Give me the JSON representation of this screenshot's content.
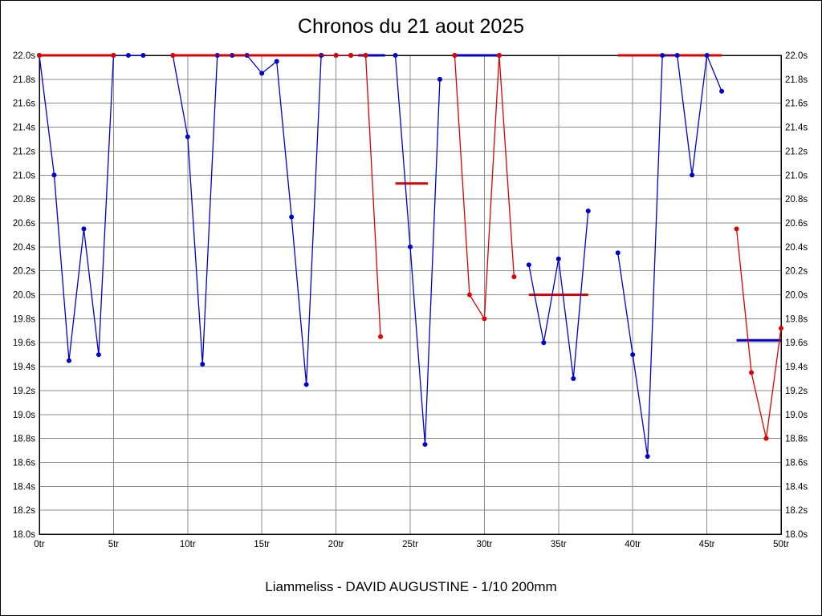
{
  "title": "Chronos du 21 aout 2025",
  "footer": "Liammeliss - DAVID AUGUSTINE - 1/10 200mm",
  "chart_data": {
    "type": "line",
    "title": "Chronos du 21 aout 2025",
    "caption": "Liammeliss - DAVID AUGUSTINE - 1/10 200mm",
    "grid": true,
    "legend": "none",
    "x_axis": {
      "min": 0,
      "max": 50,
      "step": 5,
      "suffix": "tr",
      "ticks": [
        "0tr",
        "5tr",
        "10tr",
        "15tr",
        "20tr",
        "25tr",
        "30tr",
        "35tr",
        "40tr",
        "45tr",
        "50tr"
      ]
    },
    "y_axis": {
      "min": 18.0,
      "max": 22.0,
      "step": 0.2,
      "suffix": "s",
      "ticks": [
        "18.0s",
        "18.2s",
        "18.4s",
        "18.6s",
        "18.8s",
        "19.0s",
        "19.2s",
        "19.4s",
        "19.6s",
        "19.8s",
        "20.0s",
        "20.2s",
        "20.4s",
        "20.6s",
        "20.8s",
        "21.0s",
        "21.2s",
        "21.4s",
        "21.6s",
        "21.8s",
        "22.0s"
      ],
      "labels_on_both_sides": true
    },
    "colors": {
      "blue": "#0000cc",
      "red": "#dd0000",
      "grid": "#8c8c8c",
      "frame": "#000000"
    },
    "series": [
      {
        "name": "series-blue",
        "color": "#0000cc",
        "polylines": [
          [
            [
              0,
              22.0
            ],
            [
              1,
              21.0
            ],
            [
              2,
              19.45
            ],
            [
              3,
              20.55
            ],
            [
              4,
              19.5
            ],
            [
              5,
              22.0
            ],
            [
              6,
              22.0
            ],
            [
              7,
              22.0
            ]
          ],
          [
            [
              9,
              22.0
            ],
            [
              10,
              21.32
            ],
            [
              11,
              19.42
            ],
            [
              12,
              22.0
            ],
            [
              13,
              22.0
            ],
            [
              14,
              22.0
            ],
            [
              15,
              21.85
            ],
            [
              16,
              21.95
            ],
            [
              17,
              20.65
            ],
            [
              18,
              19.25
            ],
            [
              19,
              22.0
            ],
            [
              20,
              22.0
            ],
            [
              21,
              22.0
            ],
            [
              22,
              22.0
            ]
          ],
          [
            [
              24,
              22.0
            ],
            [
              25,
              20.4
            ],
            [
              26,
              18.75
            ],
            [
              27,
              21.8
            ]
          ],
          [
            [
              28,
              22.0
            ],
            [
              31,
              22.0
            ]
          ],
          [
            [
              33,
              20.25
            ],
            [
              34,
              19.6
            ],
            [
              35,
              20.3
            ],
            [
              36,
              19.3
            ],
            [
              37,
              20.7
            ]
          ],
          [
            [
              39,
              20.35
            ],
            [
              40,
              19.5
            ],
            [
              41,
              18.65
            ],
            [
              42,
              22.0
            ],
            [
              43,
              22.0
            ],
            [
              44,
              21.0
            ],
            [
              45,
              22.0
            ],
            [
              46,
              21.7
            ]
          ]
        ]
      },
      {
        "name": "series-red",
        "color": "#dd0000",
        "polylines": [
          [
            [
              0,
              22.0
            ],
            [
              5,
              22.0
            ]
          ],
          [
            [
              9,
              22.0
            ],
            [
              20,
              22.0
            ],
            [
              21,
              22.0
            ],
            [
              22,
              22.0
            ],
            [
              23,
              19.65
            ]
          ],
          [
            [
              28,
              22.0
            ],
            [
              29,
              20.0
            ],
            [
              30,
              19.8
            ],
            [
              31,
              22.0
            ],
            [
              32,
              20.15
            ]
          ],
          [
            [
              47,
              20.55
            ],
            [
              48,
              19.35
            ],
            [
              49,
              18.8
            ],
            [
              50,
              19.72
            ]
          ]
        ]
      }
    ],
    "segments": [
      {
        "name": "red-top-segment-1",
        "color": "#dd0000",
        "x1": 0,
        "x2": 5,
        "y": 22.0
      },
      {
        "name": "red-top-segment-2",
        "color": "#dd0000",
        "x1": 9,
        "x2": 19.2,
        "y": 22.0
      },
      {
        "name": "blue-top-segment-1",
        "color": "#0000cc",
        "x1": 21.5,
        "x2": 23.3,
        "y": 22.0
      },
      {
        "name": "red-mid-segment-1",
        "color": "#dd0000",
        "x1": 24,
        "x2": 26.2,
        "y": 20.93
      },
      {
        "name": "blue-top-segment-2",
        "color": "#0000cc",
        "x1": 28,
        "x2": 31,
        "y": 22.0
      },
      {
        "name": "red-mid-segment-2",
        "color": "#dd0000",
        "x1": 33,
        "x2": 37,
        "y": 20.0
      },
      {
        "name": "red-top-segment-3",
        "color": "#dd0000",
        "x1": 39,
        "x2": 46,
        "y": 22.0
      },
      {
        "name": "blue-low-segment-1",
        "color": "#0000cc",
        "x1": 47,
        "x2": 50,
        "y": 19.62
      }
    ]
  }
}
